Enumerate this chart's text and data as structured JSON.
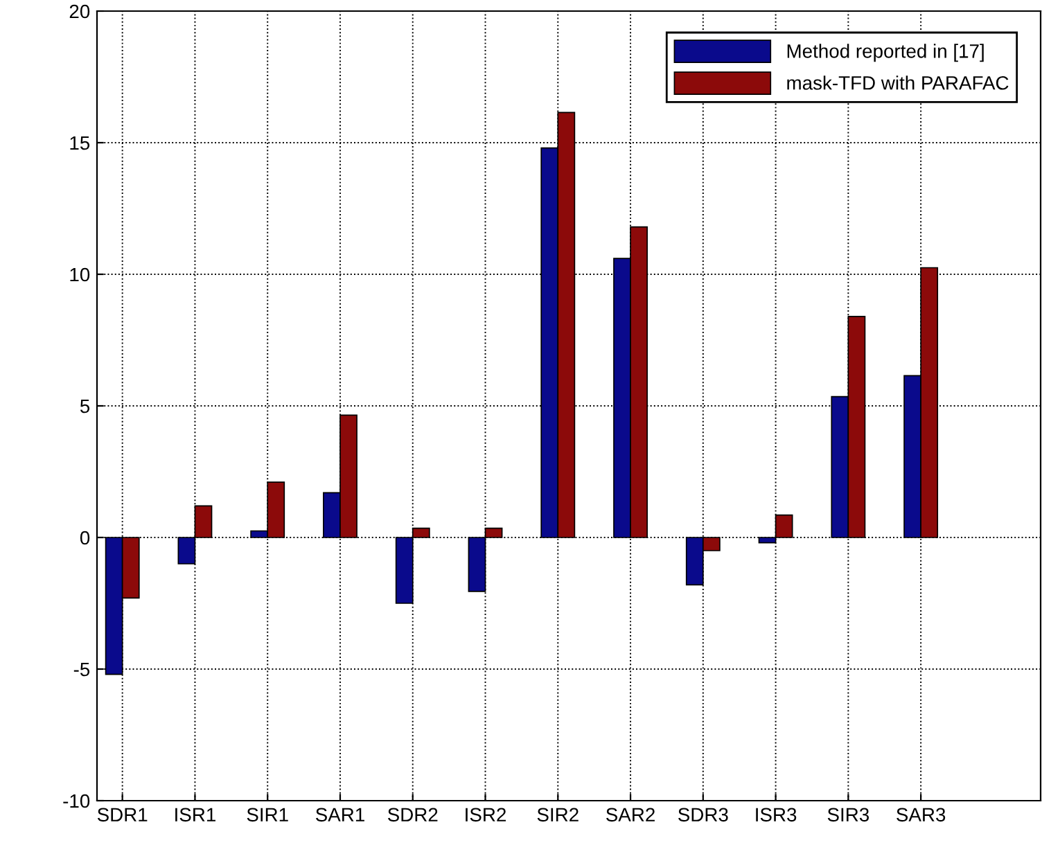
{
  "chart_data": {
    "type": "bar",
    "categories": [
      "SDR1",
      "ISR1",
      "SIR1",
      "SAR1",
      "SDR2",
      "ISR2",
      "SIR2",
      "SAR2",
      "SDR3",
      "ISR3",
      "SIR3",
      "SAR3"
    ],
    "series": [
      {
        "name": "Method reported in [17]",
        "color": "#0a0a8c",
        "values": [
          -5.2,
          -1.0,
          0.25,
          1.7,
          -2.5,
          -2.05,
          14.8,
          10.6,
          -1.8,
          -0.2,
          5.35,
          6.15
        ]
      },
      {
        "name": "mask-TFD with PARAFAC",
        "color": "#8c0a0a",
        "values": [
          -2.3,
          1.2,
          2.1,
          4.65,
          0.35,
          0.35,
          16.15,
          11.8,
          -0.5,
          0.85,
          8.4,
          10.25
        ]
      }
    ],
    "ylim": [
      -10,
      20
    ],
    "yticks": [
      -10,
      -5,
      0,
      5,
      10,
      15,
      20
    ],
    "grid": true,
    "legend": "top right"
  }
}
